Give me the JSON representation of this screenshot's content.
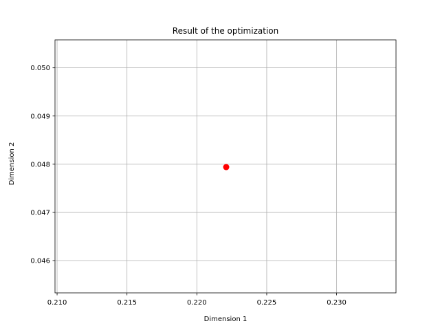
{
  "chart_data": {
    "type": "scatter",
    "title": "Result of the optimization",
    "xlabel": "Dimension 1",
    "ylabel": "Dimension 2",
    "xlim": [
      0.20985,
      0.23425
    ],
    "ylim": [
      0.04533,
      0.05058
    ],
    "xticks": [
      0.21,
      0.215,
      0.22,
      0.225,
      0.23
    ],
    "xtick_labels": [
      "0.210",
      "0.215",
      "0.220",
      "0.225",
      "0.230"
    ],
    "yticks": [
      0.046,
      0.047,
      0.048,
      0.049,
      0.05
    ],
    "ytick_labels": [
      "0.046",
      "0.047",
      "0.048",
      "0.049",
      "0.050"
    ],
    "grid": true,
    "series": [
      {
        "x": [
          0.2221
        ],
        "y": [
          0.04794
        ],
        "color": "#ff0000"
      }
    ]
  }
}
